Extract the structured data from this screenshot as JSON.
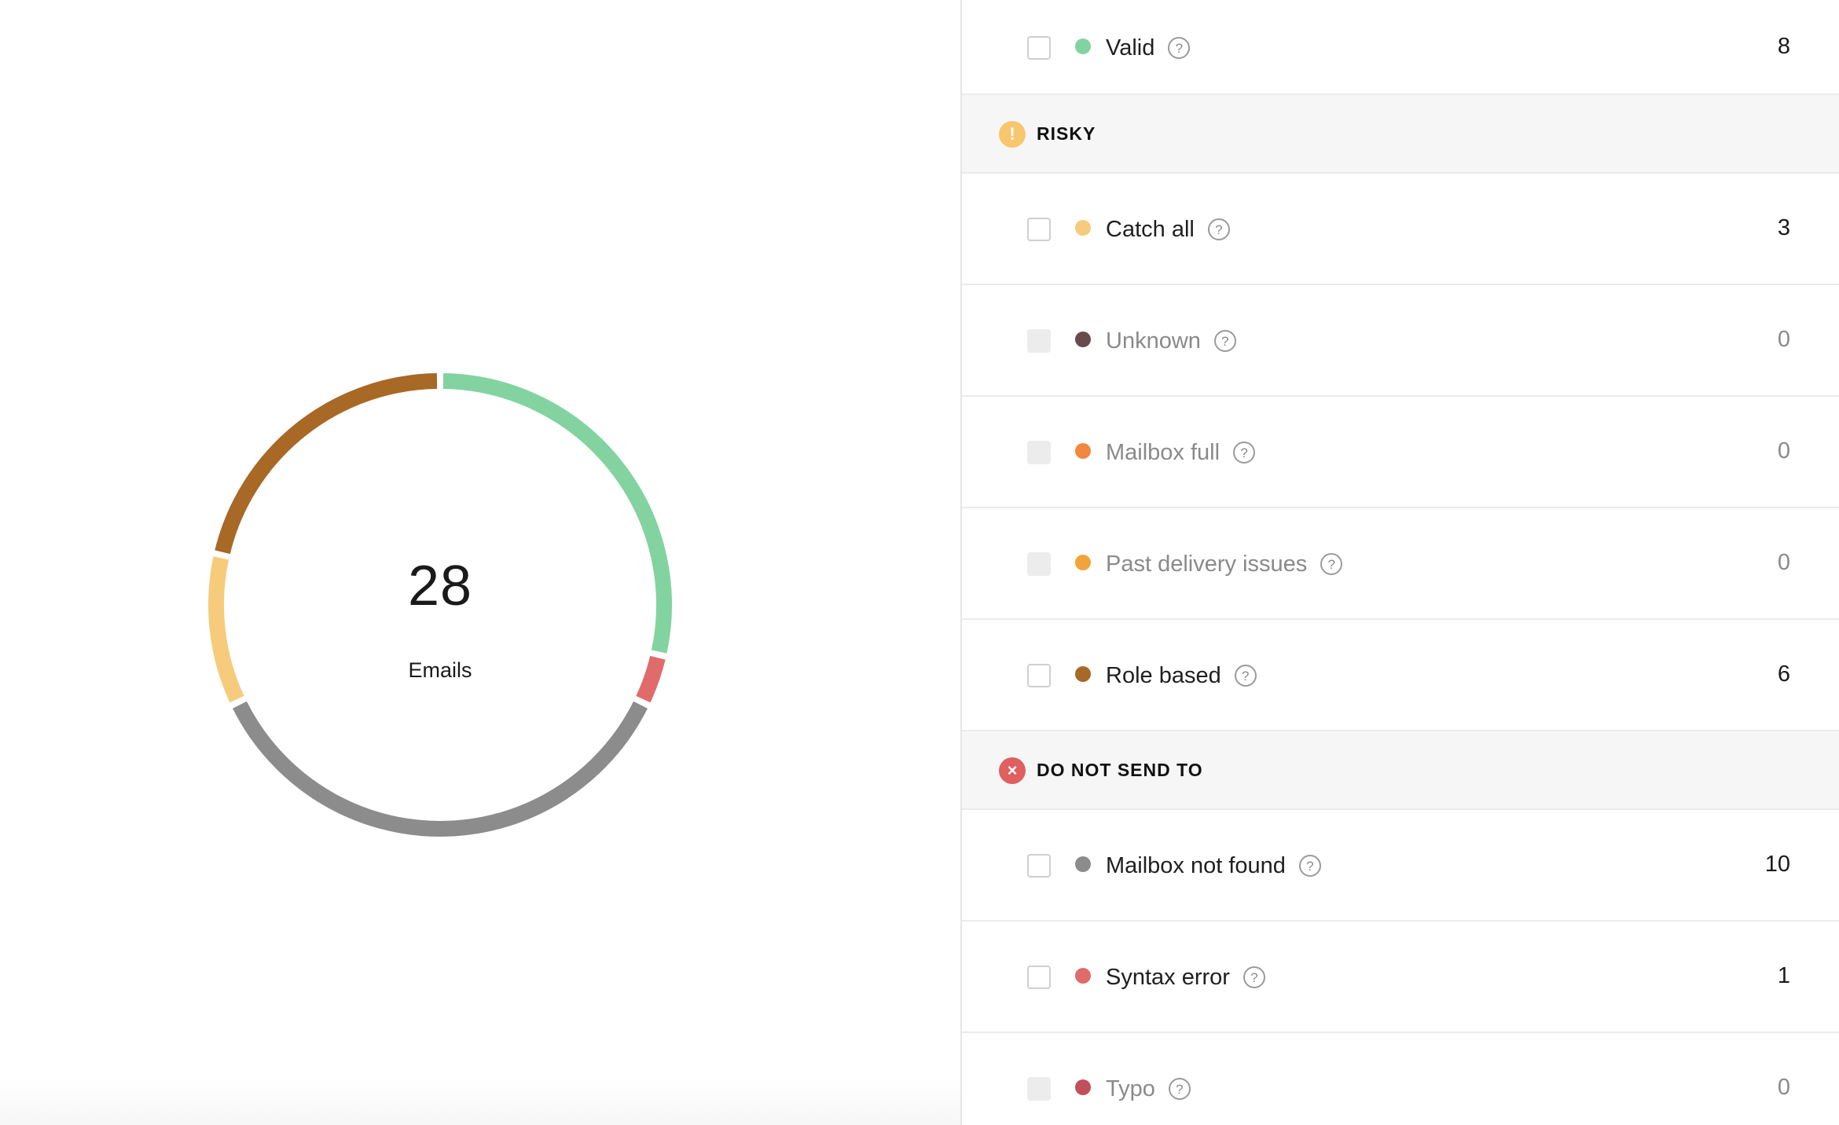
{
  "summary": {
    "total": "28",
    "total_label": "Emails"
  },
  "chart_data": {
    "type": "pie",
    "variant": "donut",
    "total": 28,
    "slices": [
      {
        "name": "Valid",
        "value": 8,
        "color": "#82d3a0"
      },
      {
        "name": "Syntax error",
        "value": 1,
        "color": "#e06b6b"
      },
      {
        "name": "Mailbox not found",
        "value": 10,
        "color": "#8c8c8c"
      },
      {
        "name": "Catch all",
        "value": 3,
        "color": "#f7cb7c"
      },
      {
        "name": "Role based",
        "value": 6,
        "color": "#a86826"
      }
    ]
  },
  "top_item": {
    "label": "Valid",
    "count": "8",
    "color": "#82d3a0",
    "enabled": true
  },
  "sections": [
    {
      "id": "risky",
      "title": "RISKY",
      "icon": "exclamation-icon",
      "icon_glyph": "!",
      "icon_color": "#f7c66d",
      "items": [
        {
          "label": "Catch all",
          "count": "3",
          "color": "#f7cb7c",
          "enabled": true
        },
        {
          "label": "Unknown",
          "count": "0",
          "color": "#6b4a4f",
          "enabled": false
        },
        {
          "label": "Mailbox full",
          "count": "0",
          "color": "#f0893f",
          "enabled": false
        },
        {
          "label": "Past delivery issues",
          "count": "0",
          "color": "#f2a43a",
          "enabled": false
        },
        {
          "label": "Role based",
          "count": "6",
          "color": "#a86826",
          "enabled": true
        }
      ]
    },
    {
      "id": "do-not-send",
      "title": "DO NOT SEND TO",
      "icon": "x-circle-icon",
      "icon_glyph": "×",
      "icon_color": "#e05f5f",
      "items": [
        {
          "label": "Mailbox not found",
          "count": "10",
          "color": "#8c8c8c",
          "enabled": true
        },
        {
          "label": "Syntax error",
          "count": "1",
          "color": "#e06b6b",
          "enabled": true
        },
        {
          "label": "Typo",
          "count": "0",
          "color": "#c0505a",
          "enabled": false
        }
      ]
    }
  ],
  "help_glyph": "?"
}
